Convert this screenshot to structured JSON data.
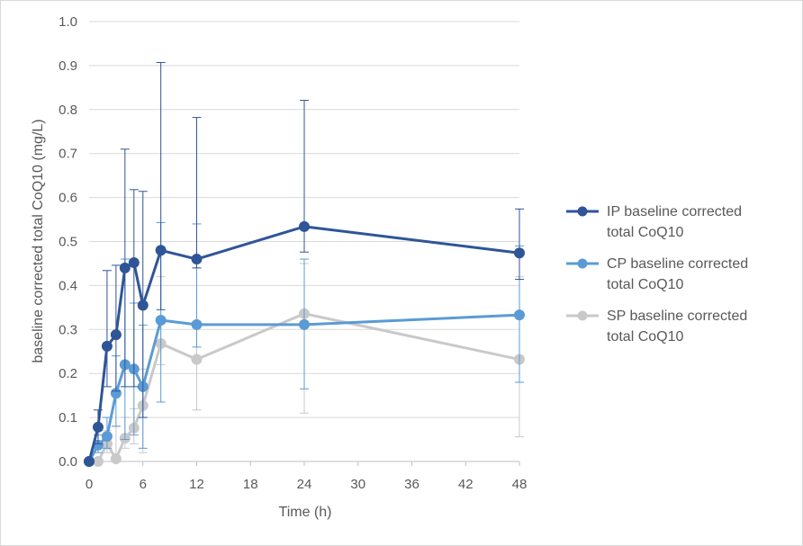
{
  "chart_data": {
    "type": "line",
    "xlabel": "Time (h)",
    "ylabel": "baseline corrected total CoQ10 (mg/L)",
    "xlim": [
      0,
      48
    ],
    "ylim": [
      0,
      1.0
    ],
    "x_ticks": [
      "0",
      "6",
      "12",
      "18",
      "24",
      "30",
      "36",
      "42",
      "48"
    ],
    "y_ticks": [
      "0.0",
      "0.1",
      "0.2",
      "0.3",
      "0.4",
      "0.5",
      "0.6",
      "0.7",
      "0.8",
      "0.9",
      "1.0"
    ],
    "grid": "horizontal",
    "legend_position": "right",
    "series": [
      {
        "name": "IP baseline corrected total CoQ10",
        "color": "#2f5597",
        "x": [
          0,
          1,
          2,
          3,
          4,
          5,
          6,
          8,
          12,
          24,
          48
        ],
        "y": [
          0.0,
          0.078,
          0.262,
          0.288,
          0.44,
          0.452,
          0.355,
          0.48,
          0.46,
          0.534,
          0.474
        ],
        "err_low": [
          0.0,
          0.04,
          0.17,
          0.16,
          0.17,
          0.17,
          0.1,
          0.345,
          0.44,
          0.476,
          0.414
        ],
        "err_high": [
          0.0,
          0.117,
          0.434,
          0.446,
          0.71,
          0.618,
          0.614,
          0.907,
          0.782,
          0.821,
          0.574
        ]
      },
      {
        "name": "CP baseline corrected total CoQ10",
        "color": "#5b9bd5",
        "x": [
          0,
          1,
          2,
          3,
          4,
          5,
          6,
          8,
          12,
          24,
          48
        ],
        "y": [
          0.0,
          0.037,
          0.057,
          0.155,
          0.22,
          0.21,
          0.17,
          0.321,
          0.311,
          0.311,
          0.333
        ],
        "err_low": [
          0.0,
          0.02,
          0.03,
          0.08,
          0.05,
          0.06,
          0.03,
          0.135,
          0.26,
          0.165,
          0.18
        ],
        "err_high": [
          0.0,
          0.06,
          0.1,
          0.24,
          0.46,
          0.36,
          0.31,
          0.543,
          0.54,
          0.46,
          0.49
        ]
      },
      {
        "name": "SP baseline corrected total CoQ10",
        "color": "#c9c9c9",
        "x": [
          0,
          1,
          2,
          3,
          4,
          5,
          6,
          8,
          12,
          24,
          48
        ],
        "y": [
          0.0,
          0.0,
          0.04,
          0.006,
          0.053,
          0.076,
          0.127,
          0.268,
          0.232,
          0.336,
          0.232
        ],
        "err_low": [
          0.0,
          0.0,
          0.02,
          0.0,
          0.03,
          0.04,
          0.02,
          0.22,
          0.117,
          0.11,
          0.056
        ],
        "err_high": [
          0.0,
          0.0,
          0.07,
          0.08,
          0.1,
          0.12,
          0.21,
          0.42,
          0.44,
          0.45,
          0.42
        ]
      }
    ]
  }
}
